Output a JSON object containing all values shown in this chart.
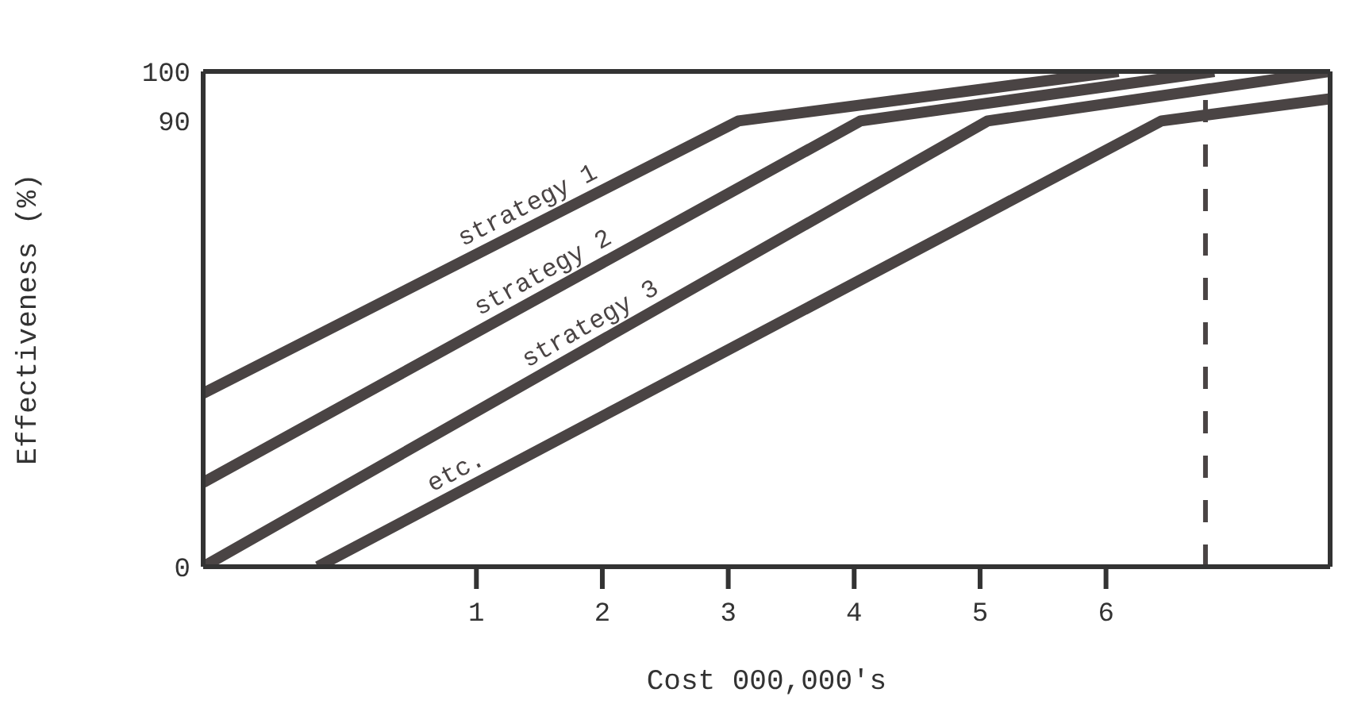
{
  "chart_data": {
    "type": "line",
    "xlabel": "Cost  000,000's",
    "ylabel": "Effectiveness (%)",
    "xlim": [
      -1.17,
      7.78
    ],
    "ylim": [
      0,
      100
    ],
    "xticks": [
      1,
      2,
      3,
      4,
      5,
      6
    ],
    "yticks": [
      0,
      90,
      100
    ],
    "marker": "none",
    "line_style": "solid",
    "series": [
      {
        "name": "strategy 1",
        "color": "#4a4444",
        "x": [
          -1.17,
          3.08,
          6.1
        ],
        "values": [
          35,
          90,
          100
        ]
      },
      {
        "name": "strategy 2",
        "color": "#4a4444",
        "x": [
          -1.17,
          4.05,
          6.86
        ],
        "values": [
          17,
          90,
          100
        ]
      },
      {
        "name": "strategy 3",
        "color": "#4a4444",
        "x": [
          -1.17,
          5.06,
          7.78
        ],
        "values": [
          0,
          90,
          100
        ]
      },
      {
        "name": "etc.",
        "color": "#4a4444",
        "x": [
          -0.26,
          6.44,
          7.78
        ],
        "values": [
          0,
          90,
          94.5
        ]
      }
    ],
    "ref_lines": [
      {
        "axis": "x",
        "value": 6.79,
        "color": "#4a4444",
        "line_style": "dashed"
      }
    ]
  }
}
